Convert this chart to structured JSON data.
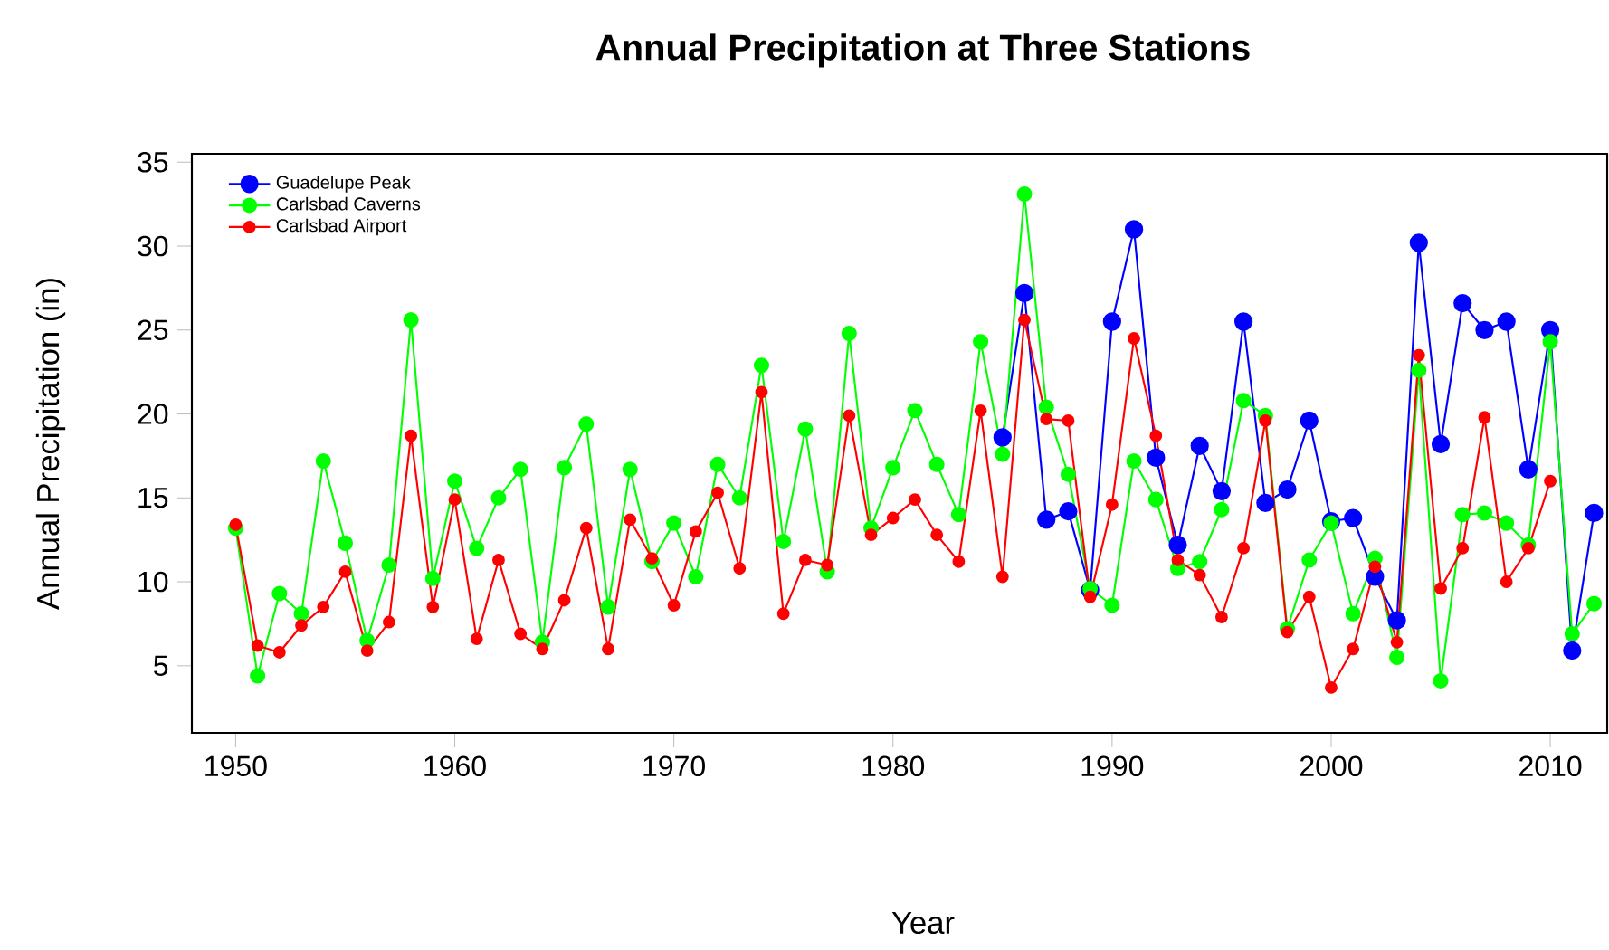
{
  "chart_data": {
    "type": "line",
    "title": "Annual Precipitation at Three Stations",
    "xlabel": "Year",
    "ylabel": "Annual Precipitation (in)",
    "xlim": [
      1948,
      2012.6
    ],
    "ylim": [
      1,
      35.5
    ],
    "xticks": [
      1950,
      1960,
      1970,
      1980,
      1990,
      2000,
      2010
    ],
    "yticks": [
      5,
      10,
      15,
      20,
      25,
      30,
      35
    ],
    "grid": false,
    "legend": "top left",
    "marker": "circle",
    "line_style": "solid",
    "series": [
      {
        "name": "Guadelupe Peak",
        "color": "#0000ff",
        "x": [
          1985,
          1986,
          1987,
          1988,
          1989,
          1990,
          1991,
          1992,
          1993,
          1994,
          1995,
          1996,
          1997,
          1998,
          1999,
          2000,
          2001,
          2002,
          2003,
          2004,
          2005,
          2006,
          2007,
          2008,
          2009,
          2010,
          2011,
          2012
        ],
        "values": [
          18.6,
          27.2,
          13.7,
          14.2,
          9.5,
          25.5,
          31.0,
          17.4,
          12.2,
          18.1,
          15.4,
          25.5,
          14.7,
          15.5,
          19.6,
          13.6,
          13.8,
          10.3,
          7.7,
          30.2,
          18.2,
          26.6,
          25.0,
          25.5,
          16.7,
          25.0,
          5.9,
          14.1
        ]
      },
      {
        "name": "Carlsbad Caverns",
        "color": "#00ff00",
        "x": [
          1950,
          1951,
          1952,
          1953,
          1954,
          1955,
          1956,
          1957,
          1958,
          1959,
          1960,
          1961,
          1962,
          1963,
          1964,
          1965,
          1966,
          1967,
          1968,
          1969,
          1970,
          1971,
          1972,
          1973,
          1974,
          1975,
          1976,
          1977,
          1978,
          1979,
          1980,
          1981,
          1982,
          1983,
          1984,
          1985,
          1986,
          1987,
          1988,
          1989,
          1990,
          1991,
          1992,
          1993,
          1994,
          1995,
          1996,
          1997,
          1998,
          1999,
          2000,
          2001,
          2002,
          2003,
          2004,
          2005,
          2006,
          2007,
          2008,
          2009,
          2010,
          2011,
          2012
        ],
        "values": [
          13.2,
          4.4,
          9.3,
          8.1,
          17.2,
          12.3,
          6.5,
          11.0,
          25.6,
          10.2,
          16.0,
          12.0,
          15.0,
          16.7,
          6.4,
          16.8,
          19.4,
          8.5,
          16.7,
          11.2,
          13.5,
          10.3,
          17.0,
          15.0,
          22.9,
          12.4,
          19.1,
          10.6,
          24.8,
          13.2,
          16.8,
          20.2,
          17.0,
          14.0,
          24.3,
          17.6,
          33.1,
          20.4,
          16.4,
          9.6,
          8.6,
          17.2,
          14.9,
          10.8,
          11.2,
          14.3,
          20.8,
          19.9,
          7.2,
          11.3,
          13.5,
          8.1,
          11.4,
          5.5,
          22.6,
          4.1,
          14.0,
          14.1,
          13.5,
          12.2,
          24.3,
          6.9,
          8.7
        ]
      },
      {
        "name": "Carlsbad Airport",
        "color": "#ff0000",
        "x": [
          1950,
          1951,
          1952,
          1953,
          1954,
          1955,
          1956,
          1957,
          1958,
          1959,
          1960,
          1961,
          1962,
          1963,
          1964,
          1965,
          1966,
          1967,
          1968,
          1969,
          1970,
          1971,
          1972,
          1973,
          1974,
          1975,
          1976,
          1977,
          1978,
          1979,
          1980,
          1981,
          1982,
          1983,
          1984,
          1985,
          1986,
          1987,
          1988,
          1989,
          1990,
          1991,
          1992,
          1993,
          1994,
          1995,
          1996,
          1997,
          1998,
          1999,
          2000,
          2001,
          2002,
          2003,
          2004,
          2005,
          2006,
          2007,
          2008,
          2009,
          2010
        ],
        "values": [
          13.4,
          6.2,
          5.8,
          7.4,
          8.5,
          10.6,
          5.9,
          7.6,
          18.7,
          8.5,
          14.9,
          6.6,
          11.3,
          6.9,
          6.0,
          8.9,
          13.2,
          6.0,
          13.7,
          11.4,
          8.6,
          13.0,
          15.3,
          10.8,
          21.3,
          8.1,
          11.3,
          11.0,
          19.9,
          12.8,
          13.8,
          14.9,
          12.8,
          11.2,
          20.2,
          10.3,
          25.6,
          19.7,
          19.6,
          9.1,
          14.6,
          24.5,
          18.7,
          11.3,
          10.4,
          7.9,
          12.0,
          19.6,
          7.0,
          9.1,
          3.7,
          6.0,
          10.9,
          6.4,
          23.5,
          9.6,
          12.0,
          19.8,
          10.0,
          12.0,
          16.0
        ]
      }
    ]
  }
}
